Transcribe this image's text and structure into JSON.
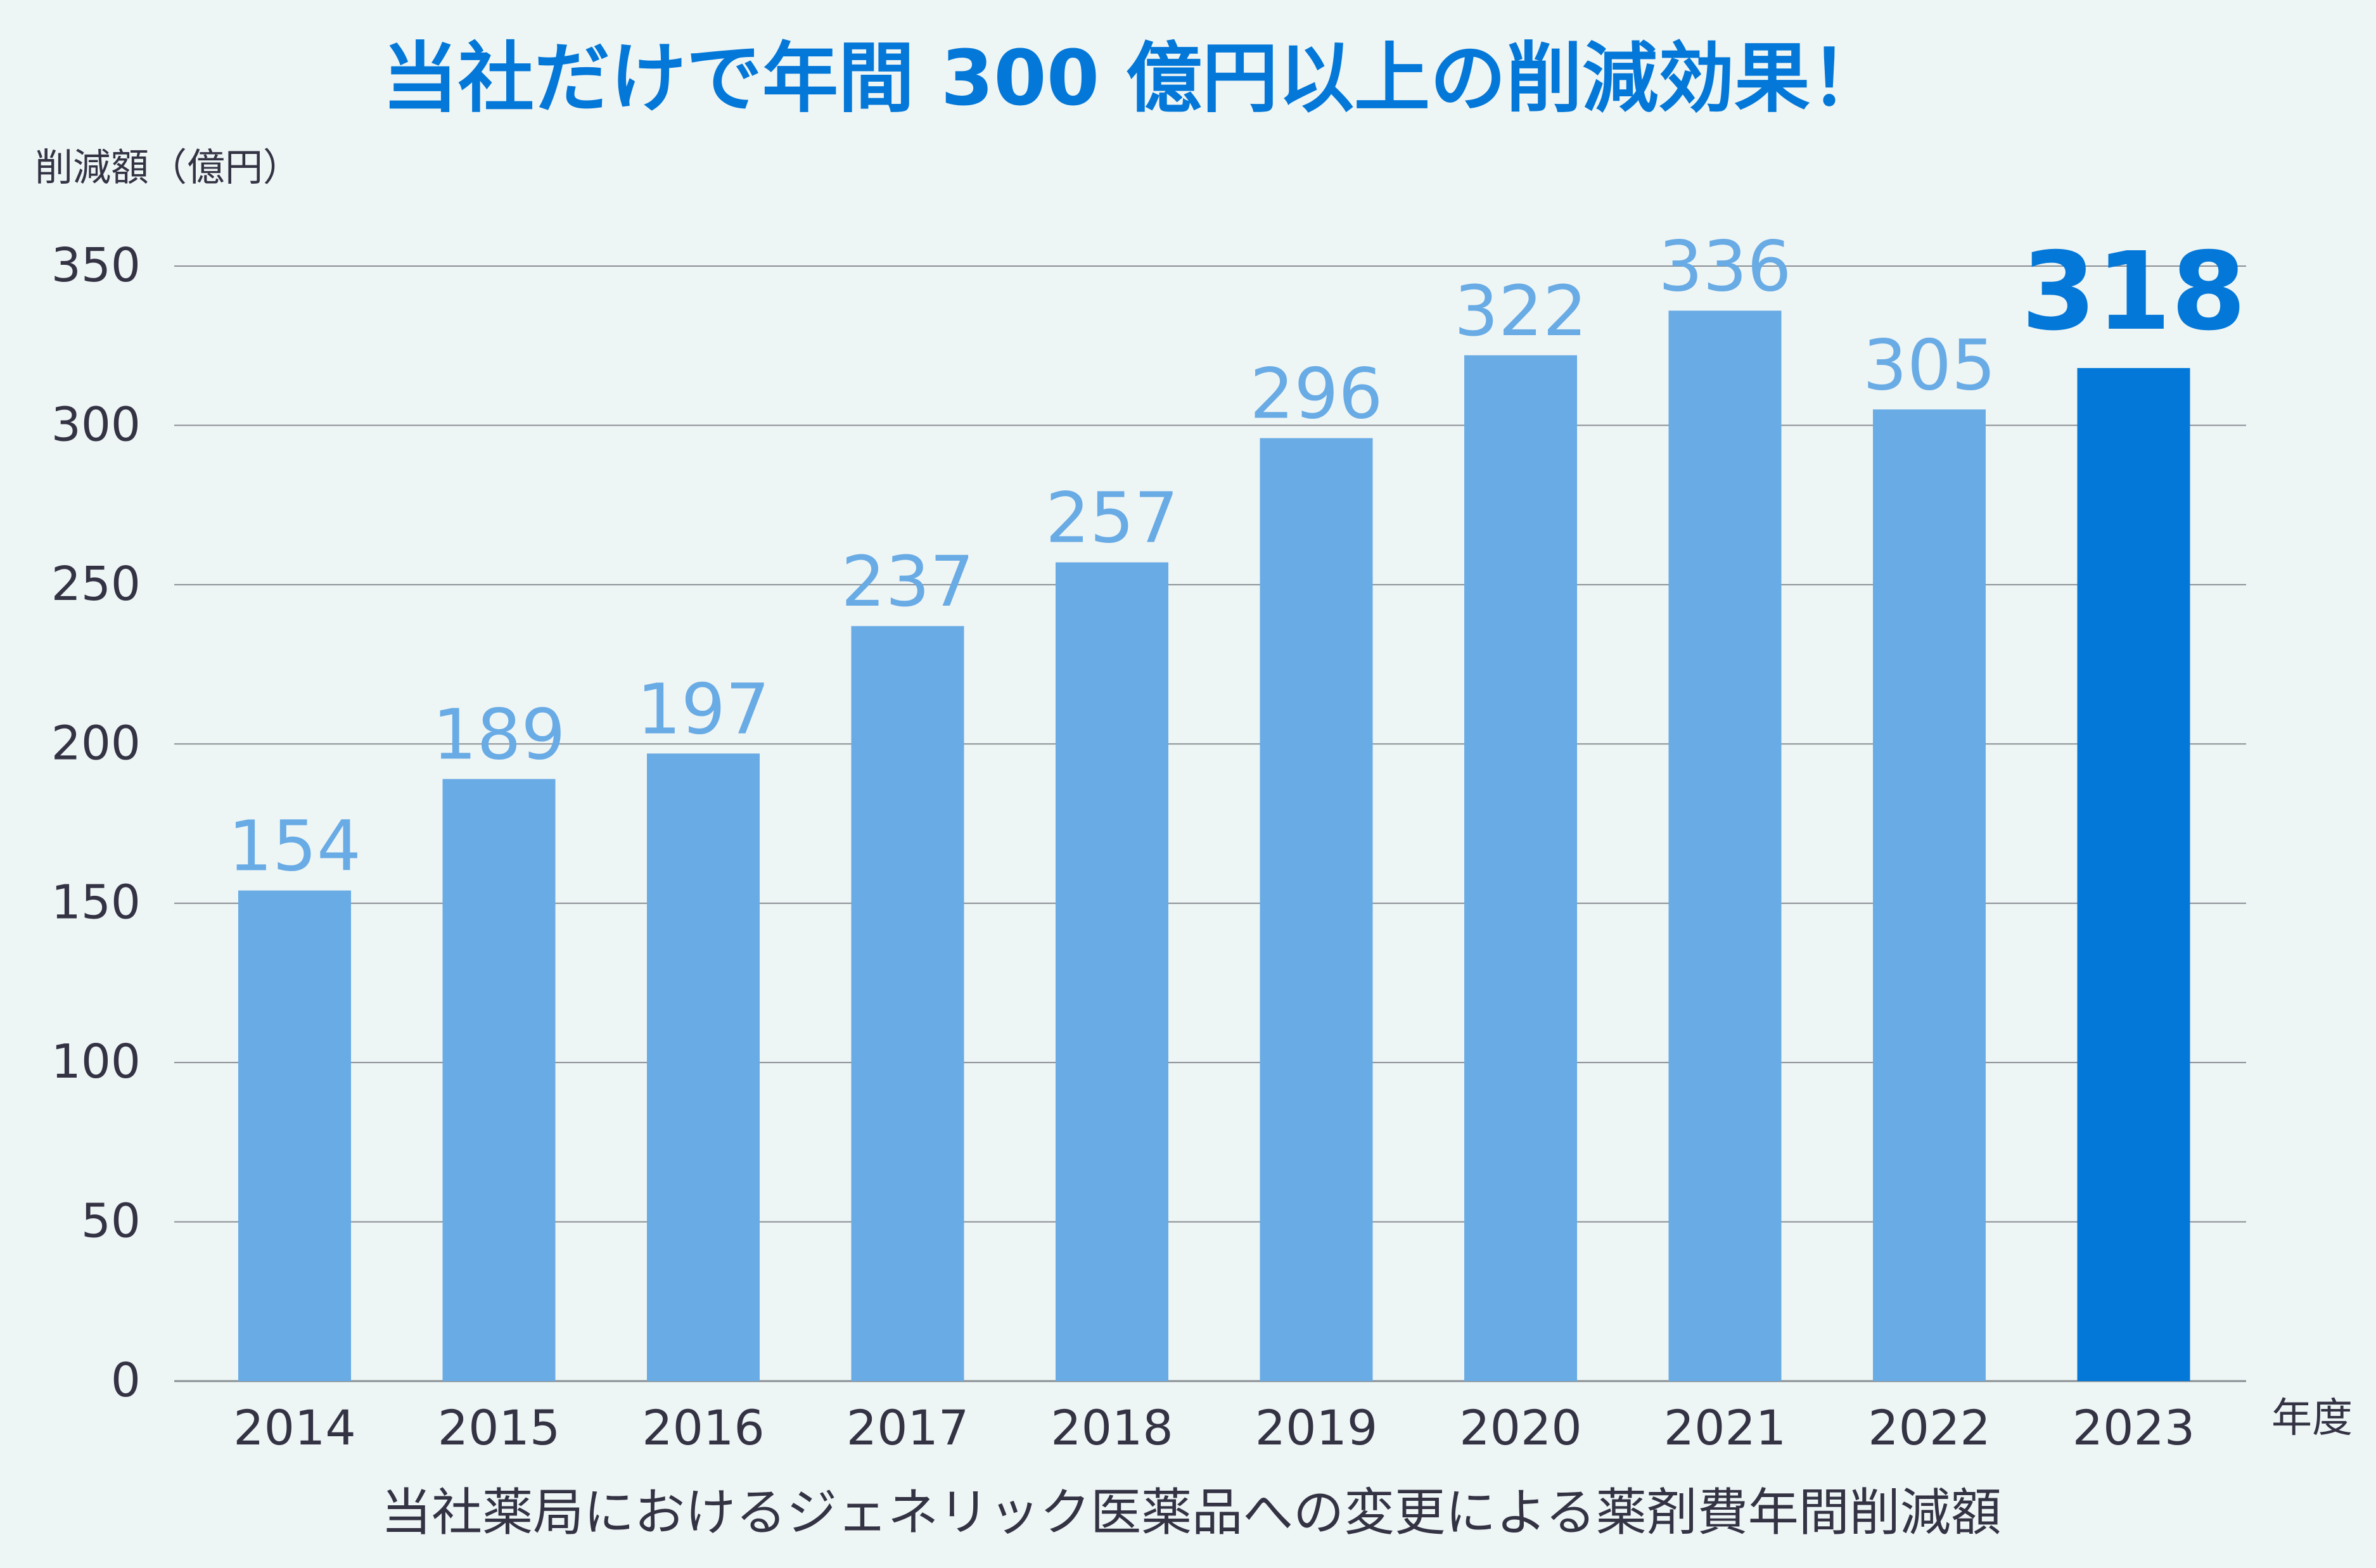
{
  "chart_data": {
    "type": "bar",
    "title": "当社だけで年間 300 億円以上の削減効果！",
    "ylabel": "削減額（億円）",
    "xlabel": "年度",
    "caption": "当社薬局におけるジェネリック医薬品への変更による薬剤費年間削減額",
    "categories": [
      "2014",
      "2015",
      "2016",
      "2017",
      "2018",
      "2019",
      "2020",
      "2021",
      "2022",
      "2023"
    ],
    "values": [
      154,
      189,
      197,
      237,
      257,
      296,
      322,
      336,
      305,
      318
    ],
    "data_labels": [
      "154",
      "189",
      "197",
      "237",
      "257",
      "296",
      "322",
      "336",
      "305",
      "318"
    ],
    "highlight_index": 9,
    "ylim": [
      0,
      350
    ],
    "yticks": [
      "0",
      "50",
      "100",
      "150",
      "200",
      "250",
      "300",
      "350"
    ],
    "grid": true,
    "colors": {
      "bar": "#68abe5",
      "bar_highlight": "#0478d8",
      "label": "#68abe5",
      "label_highlight": "#0478d8",
      "title": "#0478d8",
      "axis_text": "#333344",
      "grid": "#8a8f94",
      "background": "#eef5f5"
    }
  }
}
